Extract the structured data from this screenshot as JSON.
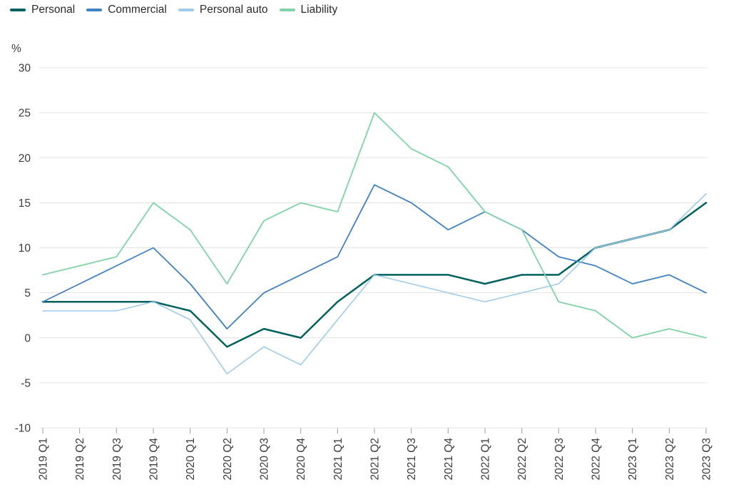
{
  "chart_data": {
    "type": "line",
    "title": "",
    "xlabel": "",
    "ylabel": "%",
    "ylim": [
      -10,
      30
    ],
    "yticks": [
      30,
      25,
      20,
      15,
      10,
      5,
      0,
      -5,
      -10
    ],
    "grid": true,
    "legend_position": "top-left",
    "categories": [
      "2019 Q1",
      "2019 Q2",
      "2019 Q3",
      "2019 Q4",
      "2020 Q1",
      "2020 Q2",
      "2020 Q3",
      "2020 Q4",
      "2021 Q1",
      "2021 Q2",
      "2021 Q3",
      "2021 Q4",
      "2022 Q1",
      "2022 Q2",
      "2022 Q3",
      "2022 Q4",
      "2023 Q1",
      "2023 Q2",
      "2023 Q3"
    ],
    "series": [
      {
        "name": "Personal",
        "color": "#00615e",
        "values": [
          4,
          4,
          4,
          4,
          3,
          -1,
          1,
          0,
          4,
          7,
          7,
          7,
          6,
          7,
          7,
          10,
          11,
          12,
          15
        ]
      },
      {
        "name": "Commercial",
        "color": "#4181c2",
        "values": [
          4,
          6,
          8,
          10,
          6,
          1,
          5,
          7,
          9,
          17,
          15,
          12,
          14,
          12,
          9,
          8,
          6,
          7,
          5
        ]
      },
      {
        "name": "Personal auto",
        "color": "#9fcbec",
        "values": [
          3,
          3,
          3,
          4,
          2,
          -4,
          -1,
          -3,
          2,
          7,
          6,
          5,
          4,
          5,
          6,
          10,
          11,
          12,
          16
        ]
      },
      {
        "name": "Liability",
        "color": "#7fd3a5",
        "values": [
          7,
          8,
          9,
          15,
          12,
          6,
          13,
          15,
          14,
          25,
          21,
          19,
          14,
          12,
          4,
          3,
          0,
          1,
          0
        ]
      }
    ]
  }
}
